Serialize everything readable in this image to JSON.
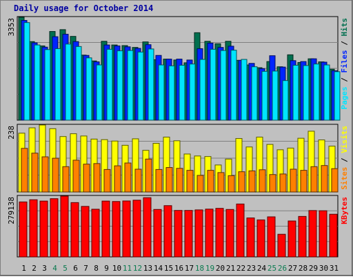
{
  "chart_data": {
    "type": "bar",
    "title": "Daily usage for October 2014",
    "colors": {
      "background": "#c0c0c0",
      "plot_background": "#c0c0c0",
      "hits": "#006f4f",
      "files": "#0024ff",
      "pages": "#00e5ff",
      "visits": "#ffff00",
      "sites": "#ff8000",
      "kbytes": "#ff0000",
      "title": "#0000a0",
      "weekend_label": "#0a7a4f"
    },
    "categories": [
      "1",
      "2",
      "3",
      "4",
      "5",
      "6",
      "7",
      "8",
      "9",
      "10",
      "11",
      "12",
      "13",
      "14",
      "15",
      "16",
      "17",
      "18",
      "19",
      "20",
      "21",
      "22",
      "23",
      "24",
      "25",
      "26",
      "27",
      "28",
      "29",
      "30",
      "31"
    ],
    "weekend_days": [
      "4",
      "5",
      "11",
      "12",
      "18",
      "19",
      "25",
      "26"
    ],
    "panels": [
      {
        "id": "hits_files_pages",
        "ymax_label": "3353",
        "ymax": 3353,
        "side_labels": [
          {
            "text": "Pages",
            "color": "#00e5ff"
          },
          {
            "text": " / ",
            "color": "#000000"
          },
          {
            "text": "Files",
            "color": "#0024ff"
          },
          {
            "text": " / ",
            "color": "#000000"
          },
          {
            "text": "Hits",
            "color": "#006f4f"
          }
        ],
        "series": [
          {
            "name": "Hits",
            "color": "#006f4f",
            "values": [
              3353,
              2560,
              2420,
              2890,
              2950,
              2730,
              2120,
              1930,
              2570,
              2450,
              2430,
              2370,
              2550,
              1970,
              1990,
              1960,
              1870,
              2850,
              2570,
              2490,
              2570,
              1950,
              1800,
              1710,
              1910,
              1740,
              2130,
              1880,
              2000,
              1900,
              1660
            ]
          },
          {
            "name": "Files",
            "color": "#0024ff",
            "values": [
              3250,
              2520,
              2380,
              2720,
              2800,
              2560,
              2110,
              1900,
              2450,
              2420,
              2390,
              2340,
              2460,
              2110,
              1990,
              1990,
              1960,
              2330,
              2510,
              2370,
              2410,
              1950,
              1850,
              1680,
              2100,
              1730,
              1940,
              1910,
              2000,
              1890,
              1610
            ]
          },
          {
            "name": "Pages",
            "color": "#00e5ff",
            "values": [
              3180,
              2450,
              2300,
              2330,
              2480,
              2400,
              2030,
              1800,
              2310,
              2260,
              2270,
              2220,
              2320,
              1800,
              1770,
              1790,
              1830,
              1980,
              2310,
              2270,
              2280,
              1980,
              1740,
              1590,
              1600,
              1290,
              1790,
              1780,
              1830,
              1800,
              1580
            ]
          }
        ]
      },
      {
        "id": "visits_sites",
        "ymax_label": "238",
        "ymax": 238,
        "side_labels": [
          {
            "text": "Sites",
            "color": "#ff8000"
          },
          {
            "text": " / ",
            "color": "#000000"
          },
          {
            "text": "Visits",
            "color": "#ffff00"
          }
        ],
        "series": [
          {
            "name": "Visits",
            "color": "#ffff00",
            "values": [
              209,
              228,
              238,
              225,
              197,
              207,
              199,
              188,
              186,
              181,
              166,
              189,
              148,
              173,
              195,
              182,
              135,
              128,
              126,
              96,
              117,
              190,
              160,
              195,
              169,
              150,
              156,
              191,
              216,
              185,
              163
            ]
          },
          {
            "name": "Sites",
            "color": "#ff8000",
            "values": [
              155,
              138,
              125,
              120,
              90,
              113,
              99,
              101,
              80,
              93,
              103,
              81,
              117,
              80,
              87,
              84,
              77,
              59,
              77,
              69,
              58,
              72,
              75,
              79,
              62,
              64,
              81,
              77,
              90,
              94,
              83
            ]
          }
        ]
      },
      {
        "id": "kbytes",
        "ymax_label": "279138",
        "ymax": 279138,
        "side_labels": [
          {
            "text": "KBytes",
            "color": "#ff0000"
          }
        ],
        "series": [
          {
            "name": "KBytes",
            "color": "#ff0000",
            "values": [
              252500,
              262500,
              256500,
              267500,
              279138,
              249500,
              232000,
              219000,
              256500,
              254500,
              257000,
              260500,
              272000,
              218000,
              235500,
              213500,
              213500,
              216000,
              219500,
              223000,
              218000,
              243000,
              179000,
              170000,
              184000,
              104000,
              165000,
              186000,
              213000,
              212000,
              196000
            ]
          }
        ]
      }
    ]
  }
}
